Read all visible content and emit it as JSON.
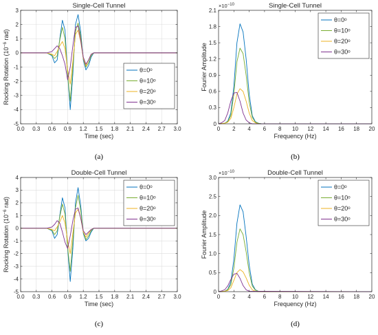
{
  "colors": {
    "s0": "#0072BD",
    "s10": "#77AC30",
    "s20": "#EDB120",
    "s30": "#7E2F8E",
    "axis": "#262626",
    "grid": "#dcdcdc"
  },
  "chart_data": [
    {
      "type": "line",
      "panel_label": "(a)",
      "title": "Single-Cell Tunnel",
      "xlabel": "Time (sec)",
      "ylabel": "Rocking Rotation (10",
      "ylabel_exp": "−6",
      "ylabel_tail": " rad)",
      "xlim": [
        0,
        3
      ],
      "ylim": [
        -5,
        3
      ],
      "xticks": [
        0,
        0.3,
        0.6,
        0.9,
        1.2,
        1.5,
        1.8,
        2.1,
        2.4,
        2.7,
        3.0
      ],
      "xtick_labels": [
        "0.0",
        "0.3",
        "0.6",
        "0.9",
        "1.2",
        "1.5",
        "1.8",
        "2.1",
        "2.4",
        "2.7",
        "3.0"
      ],
      "yticks": [
        -5,
        -4,
        -3,
        -2,
        -1,
        0,
        1,
        2,
        3
      ],
      "ytick_labels": [
        "-5",
        "-4",
        "-3",
        "-2",
        "-1",
        "0",
        "1",
        "2",
        "3"
      ],
      "y_exponent": "",
      "grid": true,
      "legend": "bottom-right",
      "series": [
        {
          "name": "θ=0ᵒ",
          "color_key": "s0",
          "x": [
            0,
            0.5,
            0.6,
            0.65,
            0.7,
            0.75,
            0.8,
            0.85,
            0.9,
            0.95,
            1.0,
            1.05,
            1.1,
            1.15,
            1.2,
            1.25,
            1.3,
            1.35,
            1.4,
            1.45,
            1.5,
            3.0
          ],
          "y": [
            0,
            0,
            -0.2,
            -0.7,
            -0.5,
            1.0,
            2.3,
            1.6,
            -1.5,
            -4.0,
            -1.5,
            2.0,
            2.7,
            1.5,
            -0.5,
            -1.2,
            -0.9,
            -0.3,
            0,
            0,
            0,
            0
          ]
        },
        {
          "name": "θ=10ᵒ",
          "color_key": "s10",
          "x": [
            0,
            0.5,
            0.6,
            0.65,
            0.7,
            0.75,
            0.8,
            0.85,
            0.9,
            0.95,
            1.0,
            1.05,
            1.1,
            1.15,
            1.2,
            1.25,
            1.3,
            1.35,
            1.4,
            1.45,
            1.5,
            3.0
          ],
          "y": [
            0,
            0,
            -0.15,
            -0.4,
            -0.2,
            0.9,
            1.8,
            1.0,
            -1.5,
            -3.4,
            -1.0,
            1.5,
            2.1,
            1.2,
            -0.4,
            -1.0,
            -0.7,
            -0.2,
            0,
            0,
            0,
            0
          ]
        },
        {
          "name": "θ=20ᵒ",
          "color_key": "s20",
          "x": [
            0,
            0.5,
            0.6,
            0.65,
            0.7,
            0.75,
            0.8,
            0.85,
            0.9,
            0.95,
            1.0,
            1.05,
            1.1,
            1.15,
            1.2,
            1.25,
            1.3,
            1.35,
            1.4,
            1.45,
            1.5,
            3.0
          ],
          "y": [
            0,
            0,
            -0.1,
            -0.2,
            0.1,
            0.5,
            0.8,
            0.3,
            -1.2,
            -2.2,
            -0.6,
            1.3,
            1.6,
            0.8,
            -0.4,
            -0.9,
            -0.5,
            -0.1,
            0,
            0,
            0,
            0
          ]
        },
        {
          "name": "θ=30ᵒ",
          "color_key": "s30",
          "x": [
            0,
            0.5,
            0.6,
            0.65,
            0.7,
            0.75,
            0.8,
            0.85,
            0.9,
            0.95,
            1.0,
            1.05,
            1.1,
            1.15,
            1.2,
            1.25,
            1.3,
            1.35,
            1.4,
            1.45,
            1.5,
            3.0
          ],
          "y": [
            0,
            0,
            0.1,
            0.3,
            0.5,
            0.3,
            -0.2,
            -0.8,
            -1.9,
            -1.0,
            0.5,
            1.8,
            1.9,
            0.9,
            -0.3,
            -0.8,
            -0.5,
            -0.1,
            0,
            0,
            0,
            0
          ]
        }
      ]
    },
    {
      "type": "line",
      "panel_label": "(b)",
      "title": "Single-Cell Tunnel",
      "xlabel": "Frequency (Hz)",
      "ylabel": "Fourier Amplitude",
      "ylabel_exp": "",
      "ylabel_tail": "",
      "xlim": [
        0,
        20
      ],
      "ylim": [
        0,
        2.1
      ],
      "xticks": [
        0,
        2,
        4,
        6,
        8,
        10,
        12,
        14,
        16,
        18,
        20
      ],
      "xtick_labels": [
        "0",
        "2",
        "4",
        "6",
        "8",
        "10",
        "12",
        "14",
        "16",
        "18",
        "20"
      ],
      "yticks": [
        0,
        0.3,
        0.6,
        0.9,
        1.2,
        1.5,
        1.8,
        2.1
      ],
      "ytick_labels": [
        "0",
        "0.3",
        "0.6",
        "0.9",
        "1.2",
        "1.5",
        "1.8",
        "2.1"
      ],
      "y_exponent": "×10",
      "y_exponent_power": "−10",
      "grid": false,
      "legend": "top-right",
      "series": [
        {
          "name": "θ=0ᵒ",
          "color_key": "s0",
          "x": [
            0,
            0.8,
            1.2,
            1.6,
            2.0,
            2.4,
            2.8,
            3.2,
            3.6,
            4.0,
            4.4,
            4.8,
            5.2,
            5.6,
            20
          ],
          "y": [
            0,
            0.01,
            0.05,
            0.2,
            0.7,
            1.5,
            1.85,
            1.7,
            1.2,
            0.55,
            0.15,
            0.04,
            0.01,
            0,
            0
          ]
        },
        {
          "name": "θ=10ᵒ",
          "color_key": "s10",
          "x": [
            0,
            0.8,
            1.2,
            1.6,
            2.0,
            2.4,
            2.8,
            3.2,
            3.6,
            4.0,
            4.4,
            4.8,
            5.2,
            5.6,
            20
          ],
          "y": [
            0,
            0.01,
            0.04,
            0.15,
            0.55,
            1.15,
            1.4,
            1.3,
            0.9,
            0.4,
            0.12,
            0.03,
            0.01,
            0,
            0
          ]
        },
        {
          "name": "θ=20ᵒ",
          "color_key": "s20",
          "x": [
            0,
            0.8,
            1.2,
            1.6,
            2.0,
            2.4,
            2.8,
            3.2,
            3.6,
            4.0,
            4.4,
            4.8,
            5.2,
            5.6,
            20
          ],
          "y": [
            0,
            0.01,
            0.03,
            0.1,
            0.3,
            0.55,
            0.65,
            0.6,
            0.42,
            0.2,
            0.06,
            0.02,
            0,
            0,
            0
          ]
        },
        {
          "name": "θ=30ᵒ",
          "color_key": "s30",
          "x": [
            0,
            0.4,
            0.8,
            1.2,
            1.6,
            2.0,
            2.4,
            2.8,
            3.2,
            3.6,
            4.0,
            4.4,
            20
          ],
          "y": [
            0,
            0.02,
            0.06,
            0.2,
            0.42,
            0.57,
            0.58,
            0.42,
            0.2,
            0.07,
            0.02,
            0,
            0
          ]
        }
      ]
    },
    {
      "type": "line",
      "panel_label": "(c)",
      "title": "Double-Cell Tunnel",
      "xlabel": "Time (sec)",
      "ylabel": "Rocking Rotation (10",
      "ylabel_exp": "−6",
      "ylabel_tail": " rad)",
      "xlim": [
        0,
        3
      ],
      "ylim": [
        -5,
        4
      ],
      "xticks": [
        0,
        0.3,
        0.6,
        0.9,
        1.2,
        1.5,
        1.8,
        2.1,
        2.4,
        2.7,
        3.0
      ],
      "xtick_labels": [
        "0.0",
        "0.3",
        "0.6",
        "0.9",
        "1.2",
        "1.5",
        "1.8",
        "2.1",
        "2.4",
        "2.7",
        "3.0"
      ],
      "yticks": [
        -5,
        -4,
        -3,
        -2,
        -1,
        0,
        1,
        2,
        3,
        4
      ],
      "ytick_labels": [
        "-5",
        "-4",
        "-3",
        "-2",
        "-1",
        "0",
        "1",
        "2",
        "3",
        "4"
      ],
      "y_exponent": "",
      "grid": true,
      "legend": "top-right",
      "series": [
        {
          "name": "θ=0ᵒ",
          "color_key": "s0",
          "x": [
            0,
            0.5,
            0.6,
            0.65,
            0.7,
            0.75,
            0.8,
            0.85,
            0.9,
            0.95,
            1.0,
            1.05,
            1.1,
            1.15,
            1.2,
            1.25,
            1.3,
            1.35,
            1.4,
            1.45,
            1.5,
            3.0
          ],
          "y": [
            0,
            0,
            -0.2,
            -0.8,
            -0.5,
            1.0,
            2.4,
            1.6,
            -1.6,
            -4.2,
            -1.6,
            2.0,
            3.2,
            1.8,
            -0.4,
            -1.0,
            -0.8,
            -0.3,
            0,
            0,
            0,
            0
          ]
        },
        {
          "name": "θ=10ᵒ",
          "color_key": "s10",
          "x": [
            0,
            0.5,
            0.6,
            0.65,
            0.7,
            0.75,
            0.8,
            0.85,
            0.9,
            0.95,
            1.0,
            1.05,
            1.1,
            1.15,
            1.2,
            1.25,
            1.3,
            1.35,
            1.4,
            1.45,
            1.5,
            3.0
          ],
          "y": [
            0,
            0,
            -0.15,
            -0.5,
            -0.2,
            0.9,
            1.9,
            1.1,
            -1.5,
            -3.4,
            -1.0,
            1.6,
            2.6,
            1.4,
            -0.3,
            -0.9,
            -0.6,
            -0.2,
            0,
            0,
            0,
            0
          ]
        },
        {
          "name": "θ=20ᵒ",
          "color_key": "s20",
          "x": [
            0,
            0.5,
            0.6,
            0.65,
            0.7,
            0.75,
            0.8,
            0.85,
            0.9,
            0.95,
            1.0,
            1.05,
            1.1,
            1.15,
            1.2,
            1.25,
            1.3,
            1.35,
            1.4,
            1.45,
            1.5,
            3.0
          ],
          "y": [
            0,
            0,
            -0.1,
            -0.2,
            0.1,
            0.5,
            1.0,
            0.4,
            -1.0,
            -2.0,
            -0.4,
            1.2,
            1.5,
            0.8,
            -0.3,
            -0.7,
            -0.4,
            -0.1,
            0,
            0,
            0,
            0
          ]
        },
        {
          "name": "θ=30ᵒ",
          "color_key": "s30",
          "x": [
            0,
            0.5,
            0.6,
            0.65,
            0.7,
            0.75,
            0.8,
            0.85,
            0.9,
            0.95,
            1.0,
            1.05,
            1.1,
            1.15,
            1.2,
            1.25,
            1.3,
            1.35,
            1.4,
            1.45,
            1.5,
            3.0
          ],
          "y": [
            0,
            0,
            0.1,
            0.3,
            0.6,
            0.4,
            -0.3,
            -1.1,
            -1.6,
            -0.6,
            0.6,
            1.5,
            1.6,
            0.8,
            -0.2,
            -0.5,
            -0.3,
            -0.1,
            0,
            0,
            0,
            0
          ]
        }
      ]
    },
    {
      "type": "line",
      "panel_label": "(d)",
      "title": "Double-Cell Tunnel",
      "xlabel": "Frequency (Hz)",
      "ylabel": "Fourier Amplitude",
      "ylabel_exp": "",
      "ylabel_tail": "",
      "xlim": [
        0,
        20
      ],
      "ylim": [
        0,
        3.0
      ],
      "xticks": [
        0,
        2,
        4,
        6,
        8,
        10,
        12,
        14,
        16,
        18,
        20
      ],
      "xtick_labels": [
        "0",
        "2",
        "4",
        "6",
        "8",
        "10",
        "12",
        "14",
        "16",
        "18",
        "20"
      ],
      "yticks": [
        0,
        0.5,
        1.0,
        1.5,
        2.0,
        2.5,
        3.0
      ],
      "ytick_labels": [
        "0",
        "0.5",
        "1.0",
        "1.5",
        "2.0",
        "2.5",
        "3.0"
      ],
      "y_exponent": "×10",
      "y_exponent_power": "−10",
      "grid": false,
      "legend": "top-right",
      "series": [
        {
          "name": "θ=0ᵒ",
          "color_key": "s0",
          "x": [
            0,
            0.8,
            1.2,
            1.6,
            2.0,
            2.4,
            2.8,
            3.2,
            3.6,
            4.0,
            4.4,
            4.8,
            5.2,
            5.6,
            20
          ],
          "y": [
            0,
            0.01,
            0.06,
            0.25,
            0.85,
            1.8,
            2.28,
            2.1,
            1.45,
            0.7,
            0.2,
            0.05,
            0.01,
            0,
            0
          ]
        },
        {
          "name": "θ=10ᵒ",
          "color_key": "s10",
          "x": [
            0,
            0.8,
            1.2,
            1.6,
            2.0,
            2.4,
            2.8,
            3.2,
            3.6,
            4.0,
            4.4,
            4.8,
            5.2,
            5.6,
            20
          ],
          "y": [
            0,
            0.01,
            0.05,
            0.18,
            0.62,
            1.3,
            1.65,
            1.5,
            1.05,
            0.5,
            0.15,
            0.04,
            0.01,
            0,
            0
          ]
        },
        {
          "name": "θ=20ᵒ",
          "color_key": "s20",
          "x": [
            0,
            0.8,
            1.2,
            1.6,
            2.0,
            2.4,
            2.8,
            3.2,
            3.6,
            4.0,
            4.4,
            4.8,
            5.2,
            20
          ],
          "y": [
            0,
            0.01,
            0.03,
            0.1,
            0.3,
            0.5,
            0.58,
            0.52,
            0.36,
            0.17,
            0.05,
            0.01,
            0,
            0
          ]
        },
        {
          "name": "θ=30ᵒ",
          "color_key": "s30",
          "x": [
            0,
            0.4,
            0.8,
            1.2,
            1.6,
            2.0,
            2.4,
            2.8,
            3.2,
            3.6,
            4.0,
            20
          ],
          "y": [
            0,
            0.02,
            0.05,
            0.15,
            0.32,
            0.46,
            0.48,
            0.35,
            0.16,
            0.05,
            0.01,
            0
          ]
        }
      ]
    }
  ]
}
